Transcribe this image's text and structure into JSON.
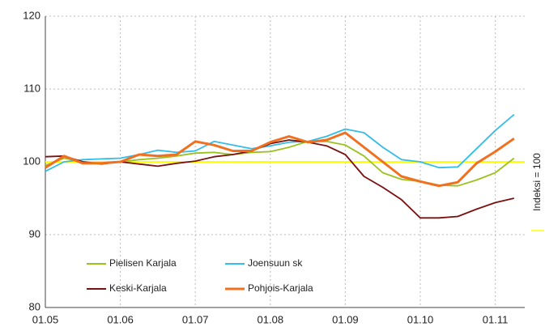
{
  "chart_data": {
    "type": "line",
    "categories": [
      "01.05",
      null,
      null,
      null,
      "01.06",
      null,
      null,
      null,
      "01.07",
      null,
      null,
      null,
      "01.08",
      null,
      null,
      null,
      "01.09",
      null,
      null,
      null,
      "01.10",
      null,
      null,
      null,
      "01.11",
      null
    ],
    "series": [
      {
        "name": "Pielisen Karjala",
        "color": "#9ac21f",
        "values": [
          99.5,
          100.5,
          100,
          99.8,
          100,
          100.3,
          100.5,
          100.8,
          101.2,
          101.3,
          101,
          101.3,
          101.4,
          102,
          102.8,
          102.8,
          102.3,
          100.8,
          98.5,
          97.6,
          97.3,
          96.8,
          96.7,
          97.5,
          98.5,
          100.5
        ]
      },
      {
        "name": "Joensuun sk",
        "color": "#33bde8",
        "values": [
          98.7,
          100,
          100.3,
          100.4,
          100.5,
          101,
          101.6,
          101.3,
          101.5,
          102.8,
          102.3,
          101.8,
          102.2,
          102.7,
          102.8,
          103.5,
          104.5,
          104,
          102,
          100.3,
          100,
          99.2,
          99.3,
          101.8,
          104.3,
          106.5
        ]
      },
      {
        "name": "Keski-Karjala",
        "color": "#7a1010",
        "values": [
          100.7,
          100.8,
          100,
          99.7,
          100,
          99.7,
          99.4,
          99.8,
          100.1,
          100.7,
          101,
          101.5,
          102.5,
          103,
          102.7,
          102.2,
          101,
          98,
          96.5,
          94.8,
          92.3,
          92.3,
          92.5,
          93.5,
          94.4,
          95
        ]
      },
      {
        "name": "Pohjois-Karjala",
        "color": "#f07020",
        "values": [
          99.2,
          100.8,
          99.8,
          99.8,
          100,
          101,
          100.8,
          101,
          102.8,
          102.3,
          101.5,
          101.5,
          102.7,
          103.5,
          102.7,
          103,
          104,
          102,
          100,
          98,
          97.3,
          96.7,
          97.2,
          99.8,
          101.4,
          103.2
        ]
      }
    ],
    "reference_line": {
      "value": 100,
      "label": "Indeksi = 100",
      "color": "#ffff00"
    },
    "ylim": [
      80,
      120
    ],
    "yticks": [
      80,
      90,
      100,
      110,
      120
    ],
    "grid": true
  }
}
